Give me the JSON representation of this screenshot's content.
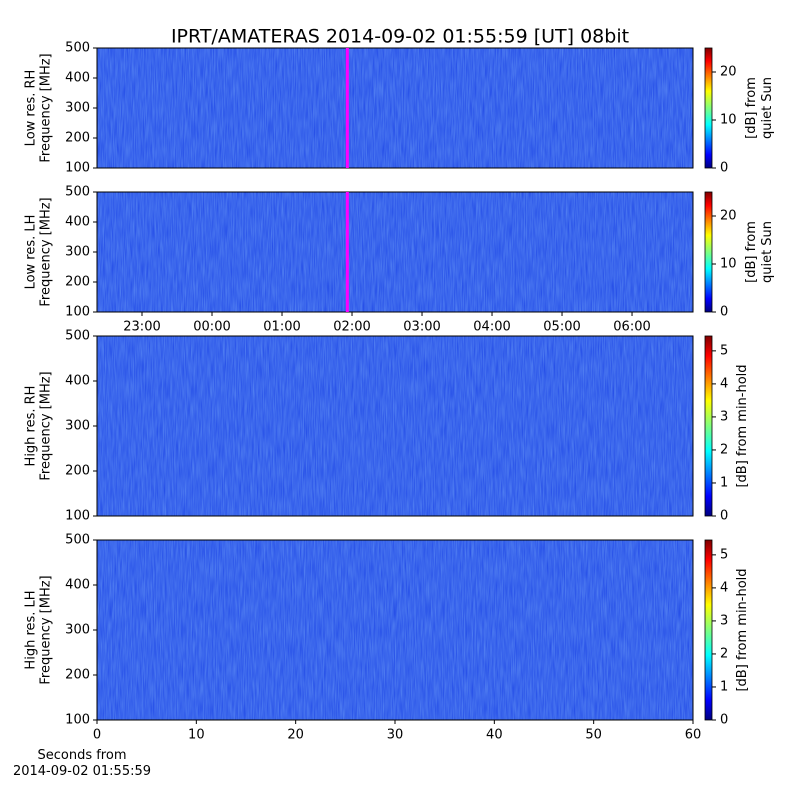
{
  "title": "IPRT/AMATERAS 2014-09-02 01:55:59 [UT]   08bit",
  "chart_data": [
    {
      "type": "heatmap",
      "ylabel": [
        "Low res. RH",
        "Frequency [MHz]"
      ],
      "xlim": [
        -1.643,
        6.871
      ],
      "ylim": [
        100,
        500
      ],
      "yticks": [
        100,
        200,
        300,
        400,
        500
      ],
      "marker": {
        "x": 1.933,
        "color": "#ff00ff"
      },
      "colorbar": {
        "colormap": "jet",
        "lim": [
          0,
          25
        ],
        "ticks": [
          0,
          10,
          20
        ],
        "label": [
          "[dB] from",
          "quiet Sun"
        ]
      }
    },
    {
      "type": "heatmap",
      "ylabel": [
        "Low res. LH",
        "Frequency [MHz]"
      ],
      "xlim": [
        -1.643,
        6.871
      ],
      "ylim": [
        100,
        500
      ],
      "yticks": [
        100,
        200,
        300,
        400,
        500
      ],
      "xticks": [
        {
          "value": -1,
          "label": "23:00"
        },
        {
          "value": 0,
          "label": "00:00"
        },
        {
          "value": 1,
          "label": "01:00"
        },
        {
          "value": 2,
          "label": "02:00"
        },
        {
          "value": 3,
          "label": "03:00"
        },
        {
          "value": 4,
          "label": "04:00"
        },
        {
          "value": 5,
          "label": "05:00"
        },
        {
          "value": 6,
          "label": "06:00"
        }
      ],
      "marker": {
        "x": 1.933,
        "color": "#ff00ff"
      },
      "colorbar": {
        "colormap": "jet",
        "lim": [
          0,
          25
        ],
        "ticks": [
          0,
          10,
          20
        ],
        "label": [
          "[dB] from",
          "quiet Sun"
        ]
      }
    },
    {
      "type": "heatmap",
      "ylabel": [
        "High res. RH",
        "Frequency [MHz]"
      ],
      "xlim": [
        0,
        60
      ],
      "ylim": [
        100,
        500
      ],
      "yticks": [
        100,
        200,
        300,
        400,
        500
      ],
      "colorbar": {
        "colormap": "jet",
        "lim": [
          0,
          5.45
        ],
        "ticks": [
          0,
          1,
          2,
          3,
          4,
          5
        ],
        "label": [
          "[dB] from min-hold"
        ]
      }
    },
    {
      "type": "heatmap",
      "ylabel": [
        "High res. LH",
        "Frequency [MHz]"
      ],
      "xlim": [
        0,
        60
      ],
      "ylim": [
        100,
        500
      ],
      "yticks": [
        100,
        200,
        300,
        400,
        500
      ],
      "xticks": [
        0,
        10,
        20,
        30,
        40,
        50,
        60
      ],
      "xlabel": [
        "Seconds from",
        "2014-09-02 01:55:59"
      ],
      "colorbar": {
        "colormap": "jet",
        "lim": [
          0,
          5.45
        ],
        "ticks": [
          0,
          1,
          2,
          3,
          4,
          5
        ],
        "label": [
          "[dB] from min-hold"
        ]
      }
    }
  ]
}
